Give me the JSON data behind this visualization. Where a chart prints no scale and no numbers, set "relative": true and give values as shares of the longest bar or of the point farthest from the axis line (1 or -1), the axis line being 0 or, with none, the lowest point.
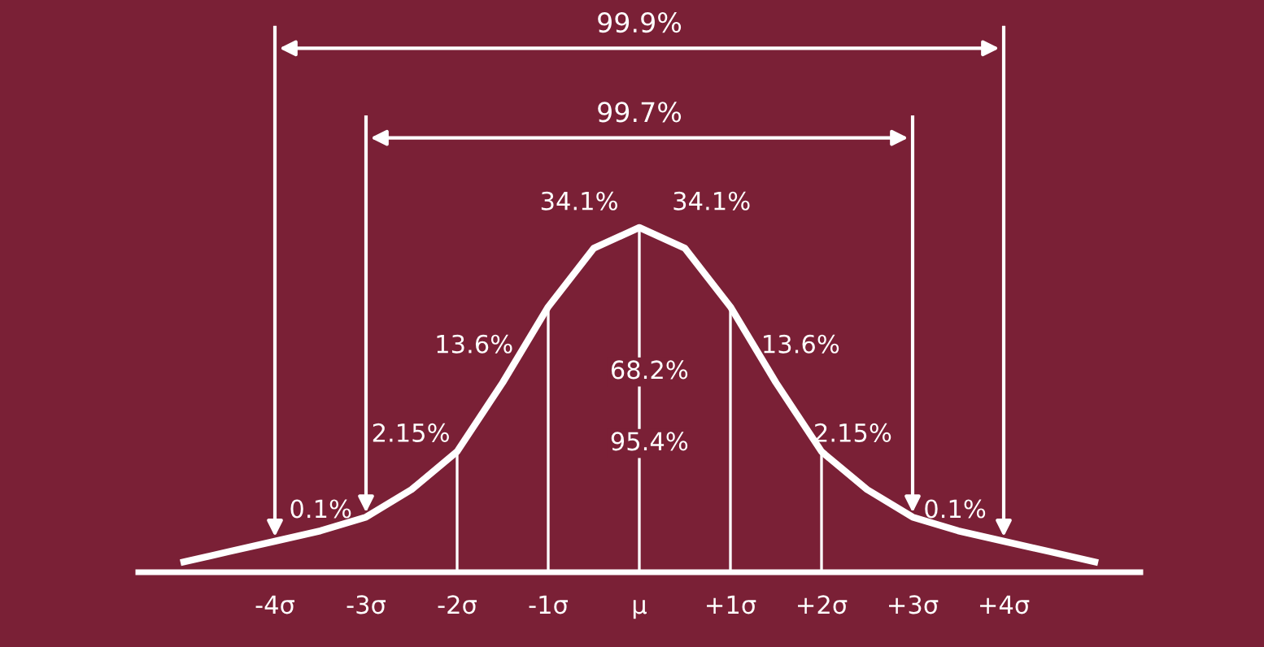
{
  "chart_data": {
    "type": "line",
    "relative": true,
    "x": [
      -5.0,
      -4.5,
      -4.0,
      -3.5,
      -3.0,
      -2.5,
      -2.0,
      -1.5,
      -1.0,
      -0.5,
      0,
      0.5,
      1.0,
      1.5,
      2.0,
      2.5,
      3.0,
      3.5,
      4.0,
      4.5,
      5.0
    ],
    "series": [
      {
        "color": "#ffffff",
        "values": [
          0.03,
          0.06,
          0.09,
          0.12,
          0.16,
          0.24,
          0.35,
          0.55,
          0.77,
          0.94,
          1,
          0.94,
          0.77,
          0.55,
          0.35,
          0.24,
          0.16,
          0.12,
          0.09,
          0.06,
          0.03
        ]
      }
    ],
    "xlim": [
      -5.5,
      5.5
    ],
    "xticks": [
      {
        "value": -4,
        "label": "-4σ"
      },
      {
        "value": -3,
        "label": "-3σ"
      },
      {
        "value": -2,
        "label": "-2σ"
      },
      {
        "value": -1,
        "label": "-1σ"
      },
      {
        "value": 0,
        "label": "μ"
      },
      {
        "value": 1,
        "label": "+1σ"
      },
      {
        "value": 2,
        "label": "+2σ"
      },
      {
        "value": 3,
        "label": "+3σ"
      },
      {
        "value": 4,
        "label": "+4σ"
      }
    ],
    "tick_labels": "x",
    "grid": false,
    "legend": false,
    "marker": "none",
    "line_style": "solid",
    "ref_lines": [
      {
        "axis": "x",
        "value": -4,
        "color": "#ffffff"
      },
      {
        "axis": "x",
        "value": -3,
        "color": "#ffffff"
      },
      {
        "axis": "x",
        "value": -2,
        "color": "#ffffff"
      },
      {
        "axis": "x",
        "value": -1,
        "color": "#ffffff"
      },
      {
        "axis": "x",
        "value": 0,
        "color": "#ffffff"
      },
      {
        "axis": "x",
        "value": 1,
        "color": "#ffffff"
      },
      {
        "axis": "x",
        "value": 2,
        "color": "#ffffff"
      },
      {
        "axis": "x",
        "value": 3,
        "color": "#ffffff"
      },
      {
        "axis": "x",
        "value": 4,
        "color": "#ffffff"
      }
    ],
    "annotations": [
      "99.9%",
      "99.7%",
      "0.1%",
      "2.15%",
      "13.6%",
      "34.1%",
      "34.1%",
      "68.2%",
      "95.4%",
      "13.6%",
      "2.15%",
      "0.1%"
    ]
  }
}
